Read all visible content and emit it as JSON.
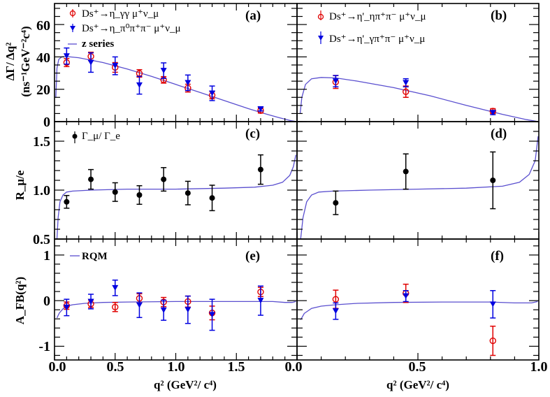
{
  "chart_data": [
    {
      "panel": "a",
      "type": "scatter",
      "tag": "(a)",
      "ylabel_line1": "ΔΓ/ Δq²",
      "ylabel_line2": "(ns⁻¹GeV⁻²c⁴)",
      "xlim": [
        0,
        2.0
      ],
      "ylim": [
        0,
        73
      ],
      "yticks": [
        0,
        20,
        40,
        60
      ],
      "ytick_labels": [
        "0",
        "20",
        "40",
        "60"
      ],
      "legend": [
        {
          "label": "Ds⁺→η_γγ μ⁺ν_μ",
          "marker": "open-circle",
          "color": "#e00000"
        },
        {
          "label": "Ds⁺→η_π⁰π⁺π⁻ μ⁺ν_μ",
          "marker": "down-triangle",
          "color": "#0000e0"
        },
        {
          "label": "z series",
          "marker": "line",
          "color": "#5a4fcf"
        }
      ],
      "series": [
        {
          "name": "Ds+ -> eta_gg mu nu",
          "color": "#e00000",
          "marker": "open-circle",
          "x": [
            0.1,
            0.3,
            0.5,
            0.7,
            0.9,
            1.1,
            1.3,
            1.7
          ],
          "y": [
            36.5,
            40.3,
            33.5,
            29.8,
            25.8,
            20.7,
            16.3,
            6.8
          ],
          "err": [
            2.5,
            2.6,
            3.0,
            2.3,
            2.0,
            2.4,
            2.2,
            1.5
          ]
        },
        {
          "name": "Ds+ -> eta_3pi mu nu",
          "color": "#0000e0",
          "marker": "down-triangle",
          "x": [
            0.1,
            0.3,
            0.5,
            0.7,
            0.9,
            1.1,
            1.3,
            1.7
          ],
          "y": [
            40.5,
            36.5,
            34.5,
            22.5,
            31.5,
            24.0,
            17.5,
            7.8
          ],
          "err": [
            5.0,
            6.0,
            5.5,
            5.5,
            4.8,
            4.8,
            4.5,
            1.2
          ]
        }
      ],
      "curve": {
        "name": "z series",
        "color": "#5a4fcf",
        "x": [
          0.011,
          0.02,
          0.035,
          0.06,
          0.1,
          0.2,
          0.4,
          0.6,
          0.8,
          1.0,
          1.2,
          1.4,
          1.6,
          1.75,
          1.85,
          1.95,
          1.99
        ],
        "y": [
          15,
          33,
          38.5,
          40,
          40.2,
          39.5,
          36.5,
          32.5,
          28.0,
          23.0,
          18.0,
          13.0,
          8.0,
          4.6,
          2.5,
          0.6,
          0.1
        ]
      }
    },
    {
      "panel": "b",
      "type": "scatter",
      "tag": "(b)",
      "xlim": [
        0,
        1.0
      ],
      "ylim": [
        0,
        73
      ],
      "legend": [
        {
          "label": "Ds⁺→η'_ηπ⁺π⁻ μ⁺ν_μ",
          "marker": "open-circle",
          "color": "#e00000"
        },
        {
          "label": "Ds⁺→η'_γπ⁺π⁻ μ⁺ν_μ",
          "marker": "down-triangle",
          "color": "#0000e0"
        }
      ],
      "series": [
        {
          "name": "Ds+ -> eta' (eta pi pi) mu nu",
          "color": "#e00000",
          "marker": "open-circle",
          "x": [
            0.16,
            0.45,
            0.81
          ],
          "y": [
            24.5,
            18.5,
            6.5
          ],
          "err": [
            4.0,
            3.5,
            1.5
          ]
        },
        {
          "name": "Ds+ -> eta' (gamma pi pi) mu nu",
          "color": "#0000e0",
          "marker": "down-triangle",
          "x": [
            0.16,
            0.45,
            0.81
          ],
          "y": [
            25.0,
            24.0,
            5.5
          ],
          "err": [
            3.5,
            2.5,
            1.2
          ]
        }
      ],
      "curve": {
        "name": "z series",
        "color": "#5a4fcf",
        "x": [
          0.013,
          0.02,
          0.035,
          0.06,
          0.1,
          0.16,
          0.25,
          0.4,
          0.55,
          0.7,
          0.85,
          0.95,
          0.99
        ],
        "y": [
          5,
          15,
          23,
          26.5,
          27.3,
          27.0,
          25.0,
          21.0,
          16.0,
          10.0,
          4.5,
          1.2,
          0.2
        ]
      }
    },
    {
      "panel": "c",
      "type": "scatter",
      "tag": "(c)",
      "ylabel": "R_μ/e",
      "xlim": [
        0,
        2.0
      ],
      "ylim": [
        0.5,
        1.7
      ],
      "yticks": [
        0.5,
        1.0,
        1.5
      ],
      "ytick_labels": [
        "0.5",
        "1.0",
        "1.5"
      ],
      "legend": [
        {
          "label": "Γ_μ/ Γ_e",
          "marker": "filled-circle",
          "color": "#000000"
        }
      ],
      "series": [
        {
          "name": "Gamma_mu / Gamma_e",
          "color": "#000000",
          "marker": "filled-circle",
          "x": [
            0.1,
            0.3,
            0.5,
            0.7,
            0.9,
            1.1,
            1.3,
            1.7
          ],
          "y": [
            0.88,
            1.11,
            0.98,
            0.95,
            1.11,
            0.97,
            0.92,
            1.21
          ],
          "err": [
            0.065,
            0.1,
            0.095,
            0.095,
            0.12,
            0.12,
            0.13,
            0.15
          ]
        }
      ],
      "curve": {
        "name": "RQM",
        "color": "#5a4fcf",
        "x": [
          0.02,
          0.03,
          0.045,
          0.07,
          0.1,
          0.15,
          0.3,
          0.6,
          1.0,
          1.4,
          1.65,
          1.8,
          1.88,
          1.94,
          1.97,
          1.99
        ],
        "y": [
          0.5,
          0.72,
          0.88,
          0.95,
          0.98,
          0.99,
          1.0,
          1.01,
          1.01,
          1.02,
          1.03,
          1.05,
          1.08,
          1.15,
          1.24,
          1.36
        ]
      }
    },
    {
      "panel": "d",
      "type": "scatter",
      "tag": "(d)",
      "xlim": [
        0,
        1.0
      ],
      "ylim": [
        0.5,
        1.7
      ],
      "series": [
        {
          "name": "Gamma_mu / Gamma_e",
          "color": "#000000",
          "marker": "filled-circle",
          "x": [
            0.16,
            0.45,
            0.81
          ],
          "y": [
            0.87,
            1.19,
            1.1
          ],
          "err": [
            0.12,
            0.18,
            0.29
          ]
        }
      ],
      "curve": {
        "name": "RQM",
        "color": "#5a4fcf",
        "x": [
          0.015,
          0.025,
          0.04,
          0.06,
          0.09,
          0.15,
          0.3,
          0.5,
          0.7,
          0.85,
          0.92,
          0.96,
          0.985,
          0.997
        ],
        "y": [
          0.5,
          0.72,
          0.88,
          0.95,
          0.98,
          0.99,
          1.0,
          1.01,
          1.02,
          1.04,
          1.08,
          1.16,
          1.3,
          1.55
        ]
      }
    },
    {
      "panel": "e",
      "type": "scatter",
      "tag": "(e)",
      "ylabel": "A_FB(q²)",
      "xlabel": "q² (GeV²/ c⁴)",
      "xlim": [
        0,
        2.0
      ],
      "ylim": [
        -1.3,
        1.35
      ],
      "yticks": [
        -1,
        0,
        1
      ],
      "ytick_labels": [
        "-1",
        "0",
        "1"
      ],
      "xticks": [
        0.0,
        0.5,
        1.0,
        1.5
      ],
      "xtick_labels": [
        "0.0",
        "0.5",
        "1.0",
        "1.5"
      ],
      "legend": [
        {
          "label": "RQM",
          "marker": "line",
          "color": "#5a4fcf"
        }
      ],
      "series": [
        {
          "name": "Ds+ -> eta_gg mu nu",
          "color": "#e00000",
          "marker": "open-circle",
          "x": [
            0.1,
            0.3,
            0.5,
            0.7,
            0.9,
            1.1,
            1.3,
            1.7
          ],
          "y": [
            -0.11,
            -0.07,
            -0.14,
            0.05,
            -0.03,
            -0.02,
            -0.27,
            0.19
          ],
          "err": [
            0.08,
            0.08,
            0.1,
            0.1,
            0.1,
            0.12,
            0.15,
            0.1
          ]
        },
        {
          "name": "Ds+ -> eta_3pi mu nu",
          "color": "#0000e0",
          "marker": "down-triangle",
          "x": [
            0.1,
            0.3,
            0.5,
            0.7,
            0.9,
            1.1,
            1.3,
            1.7
          ],
          "y": [
            -0.15,
            -0.02,
            0.28,
            -0.1,
            -0.21,
            -0.2,
            -0.31,
            0.0
          ],
          "err": [
            0.18,
            0.16,
            0.17,
            0.27,
            0.22,
            0.3,
            0.34,
            0.32
          ]
        }
      ],
      "curve": {
        "name": "RQM",
        "color": "#5a4fcf",
        "x": [
          0.02,
          0.04,
          0.07,
          0.1,
          0.15,
          0.25,
          0.4,
          0.6,
          1.0,
          1.4,
          1.8,
          1.9,
          1.96,
          1.99
        ],
        "y": [
          -0.38,
          -0.27,
          -0.18,
          -0.12,
          -0.09,
          -0.06,
          -0.04,
          -0.03,
          -0.02,
          -0.02,
          -0.02,
          -0.04,
          -0.04,
          -0.02
        ]
      }
    },
    {
      "panel": "f",
      "type": "scatter",
      "tag": "(f)",
      "xlabel": "q² (GeV²/ c⁴)",
      "xlim": [
        0,
        1.0
      ],
      "ylim": [
        -1.3,
        1.35
      ],
      "xticks": [
        0.0,
        0.5,
        1.0
      ],
      "xtick_labels": [
        "0.0",
        "0.5",
        "1.0"
      ],
      "series": [
        {
          "name": "Ds+ -> eta' (eta pi pi) mu nu",
          "color": "#e00000",
          "marker": "open-circle",
          "x": [
            0.16,
            0.45,
            0.81
          ],
          "y": [
            0.03,
            0.16,
            -0.88
          ],
          "err": [
            0.2,
            0.2,
            0.32
          ]
        },
        {
          "name": "Ds+ -> eta' (gamma pi pi) mu nu",
          "color": "#0000e0",
          "marker": "down-triangle",
          "x": [
            0.16,
            0.45,
            0.81
          ],
          "y": [
            -0.23,
            0.1,
            -0.08
          ],
          "err": [
            0.18,
            0.12,
            0.3
          ]
        }
      ],
      "curve": {
        "name": "RQM",
        "color": "#5a4fcf",
        "x": [
          0.015,
          0.03,
          0.06,
          0.1,
          0.16,
          0.25,
          0.4,
          0.6,
          0.8,
          0.9,
          0.97,
          0.995
        ],
        "y": [
          -0.42,
          -0.28,
          -0.17,
          -0.12,
          -0.09,
          -0.06,
          -0.04,
          -0.03,
          -0.03,
          -0.05,
          -0.05,
          -0.02
        ]
      }
    }
  ]
}
